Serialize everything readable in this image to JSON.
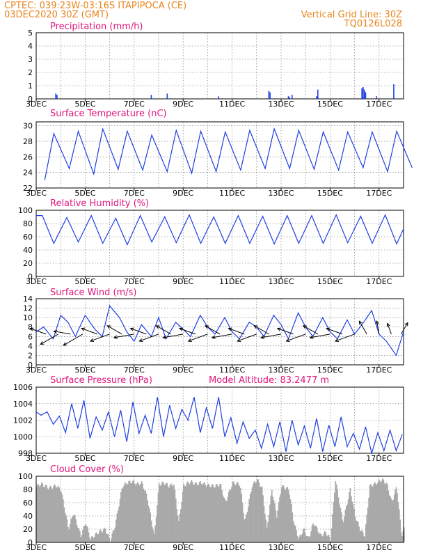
{
  "header": {
    "line1_left": "CPTEC:    039:23W-03:16S   ITAPIPOCA (CE)",
    "line2_left": "03DEC2020 30Z (GMT)",
    "line2_right": "Vertical Grid Line: 30Z",
    "line3_right": "TQ0126L028"
  },
  "colors": {
    "header": "#e8851e",
    "panel_title": "#e0177e",
    "series": "#1f3fe0",
    "cloud": "#a9a9a9",
    "wind_arrow": "#000000"
  },
  "chart_data": [
    {
      "type": "bar",
      "title": "Precipitation (mm/h)",
      "x_unit": "days since 03DEC 00Z",
      "xlim": [
        0,
        15
      ],
      "x_tick_labels": [
        "3DEC",
        "5DEC",
        "7DEC",
        "9DEC",
        "11DEC",
        "13DEC",
        "15DEC",
        "17DEC"
      ],
      "ylim": [
        0,
        5
      ],
      "y_ticks": [
        0,
        1,
        2,
        3,
        4,
        5
      ],
      "x": [
        0.8,
        0.85,
        4.7,
        5.35,
        7.45,
        9.5,
        9.55,
        10.3,
        10.35,
        10.45,
        11.45,
        11.5,
        13.3,
        13.35,
        13.4,
        13.45,
        13.9,
        14.6
      ],
      "values": [
        0.4,
        0.3,
        0.3,
        0.4,
        0.2,
        0.6,
        0.5,
        0.2,
        0.1,
        0.3,
        0.2,
        0.7,
        0.8,
        0.9,
        0.7,
        0.5,
        0.2,
        1.1
      ]
    },
    {
      "type": "line",
      "title": "Surface Temperature (nC)",
      "xlim": [
        0,
        15
      ],
      "x_tick_labels": [
        "3DEC",
        "5DEC",
        "7DEC",
        "9DEC",
        "11DEC",
        "13DEC",
        "15DEC",
        "17DEC"
      ],
      "ylim": [
        22,
        30.5
      ],
      "y_ticks": [
        22,
        24,
        26,
        28,
        30
      ],
      "min_temp": [
        23,
        24.5,
        23.8,
        24.4,
        24.3,
        24.1,
        23.9,
        24.1,
        24.3,
        24.5,
        24.5,
        24.4,
        24.3,
        24.6,
        24.1,
        24.6
      ],
      "max_temp": [
        29,
        29.3,
        29.6,
        29.3,
        28.8,
        29.4,
        29.3,
        29.2,
        29.4,
        29.6,
        29.4,
        29.2,
        29.2,
        29.2,
        29.3
      ]
    },
    {
      "type": "line",
      "title": "Relative Humidity (%)",
      "xlim": [
        0,
        15
      ],
      "x_tick_labels": [
        "3DEC",
        "5DEC",
        "7DEC",
        "9DEC",
        "11DEC",
        "13DEC",
        "15DEC",
        "17DEC"
      ],
      "ylim": [
        0,
        100
      ],
      "y_ticks": [
        0,
        20,
        40,
        60,
        80,
        100
      ],
      "max_rh": [
        92,
        89,
        92,
        88,
        92,
        90,
        93,
        90,
        92,
        91,
        92,
        92,
        93,
        91,
        93
      ],
      "min_rh": [
        50,
        52,
        50,
        48,
        52,
        51,
        50,
        50,
        50,
        49,
        50,
        50,
        51,
        50,
        49
      ]
    },
    {
      "type": "line",
      "title": "Surface Wind (m/s)",
      "xlim": [
        0,
        15
      ],
      "x_tick_labels": [
        "3DEC",
        "5DEC",
        "7DEC",
        "9DEC",
        "11DEC",
        "13DEC",
        "15DEC",
        "17DEC"
      ],
      "ylim": [
        0,
        14
      ],
      "y_ticks": [
        0,
        2,
        4,
        6,
        8,
        10,
        12,
        14
      ],
      "x": [
        0,
        0.3,
        0.7,
        1.0,
        1.3,
        1.6,
        2.0,
        2.4,
        2.7,
        3.0,
        3.4,
        3.7,
        4.0,
        4.3,
        4.7,
        5.0,
        5.3,
        5.7,
        6.0,
        6.3,
        6.7,
        7.0,
        7.3,
        7.7,
        8.0,
        8.3,
        8.7,
        9.0,
        9.3,
        9.7,
        10.0,
        10.3,
        10.7,
        11.0,
        11.3,
        11.7,
        12.0,
        12.3,
        12.7,
        13.0,
        13.3,
        13.7,
        14.0,
        14.3,
        14.7,
        15.0
      ],
      "speed": [
        7,
        8,
        5.5,
        10.5,
        9,
        6,
        10.5,
        7.5,
        6,
        12.5,
        10,
        7,
        5,
        8.5,
        6,
        10,
        5.5,
        9,
        7.5,
        6,
        10.5,
        8,
        6.5,
        10,
        7,
        5.5,
        9,
        8,
        6,
        10.5,
        8.5,
        5.5,
        11,
        8,
        6,
        10,
        7,
        5.5,
        9.5,
        6.5,
        8.5,
        11.5,
        6.5,
        5,
        2,
        7
      ],
      "arrows_x": [
        0.4,
        0.9,
        1.4,
        1.9,
        2.5,
        3.0,
        3.5,
        4.0,
        4.5,
        5.0,
        5.5,
        6.0,
        6.5,
        7.0,
        7.5,
        8.0,
        8.5,
        9.0,
        9.5,
        10.0,
        10.5,
        11.0,
        11.5,
        12.0,
        12.5,
        13.0,
        13.5,
        14.0,
        14.5,
        14.9
      ],
      "arrows_speed": [
        7,
        9,
        7,
        10,
        7,
        9,
        7,
        9,
        7,
        9,
        7,
        9,
        7,
        9,
        7,
        9,
        7,
        9,
        7,
        9,
        7,
        9,
        7,
        9,
        7,
        9,
        6,
        5,
        4,
        5
      ],
      "arrows_dir_deg": [
        200,
        150,
        190,
        150,
        200,
        160,
        210,
        170,
        200,
        160,
        210,
        170,
        200,
        160,
        210,
        170,
        200,
        160,
        210,
        170,
        200,
        160,
        210,
        170,
        200,
        160,
        240,
        260,
        250,
        300
      ]
    },
    {
      "type": "line",
      "title": "Surface Pressure (hPa)",
      "annotation": "Model Altitude: 83.2477 m",
      "xlim": [
        0,
        15
      ],
      "x_tick_labels": [
        "3DEC",
        "5DEC",
        "7DEC",
        "9DEC",
        "11DEC",
        "13DEC",
        "15DEC",
        "17DEC"
      ],
      "ylim": [
        998,
        1006
      ],
      "y_ticks": [
        998,
        1000,
        1002,
        1004,
        1006
      ],
      "x": [
        0,
        0.2,
        0.45,
        0.7,
        0.95,
        1.2,
        1.45,
        1.7,
        1.95,
        2.2,
        2.45,
        2.7,
        2.95,
        3.2,
        3.45,
        3.7,
        3.95,
        4.2,
        4.45,
        4.7,
        4.95,
        5.2,
        5.45,
        5.7,
        5.95,
        6.2,
        6.45,
        6.7,
        6.95,
        7.2,
        7.45,
        7.7,
        7.95,
        8.2,
        8.45,
        8.7,
        8.95,
        9.2,
        9.45,
        9.7,
        9.95,
        10.2,
        10.45,
        10.7,
        10.95,
        11.2,
        11.45,
        11.7,
        11.95,
        12.2,
        12.45,
        12.7,
        12.95,
        13.2,
        13.45,
        13.7,
        13.95,
        14.2,
        14.45,
        14.7,
        14.95
      ],
      "values": [
        1003,
        1002.6,
        1003,
        1001.5,
        1002.5,
        1000.5,
        1004,
        1001,
        1004.4,
        999.8,
        1002.4,
        1000.8,
        1003,
        1000,
        1003.2,
        999.4,
        1004.2,
        1000.4,
        1002.6,
        1000.4,
        1004.8,
        1000,
        1003.8,
        1001,
        1003.3,
        1002,
        1004.8,
        1000.5,
        1003.5,
        1001,
        1004.8,
        1000,
        1002.3,
        999.2,
        1001.8,
        999.8,
        1000.8,
        998.6,
        1001.5,
        998.8,
        1001.8,
        998.2,
        1002,
        999,
        1001.3,
        998.6,
        1002.2,
        998.2,
        1001.4,
        998.8,
        1002.4,
        998.8,
        1000.4,
        998.5,
        1001.2,
        998,
        1000.5,
        998.3,
        1000.8,
        998.3,
        1000.3
      ]
    },
    {
      "type": "area",
      "title": "Cloud Cover (%)",
      "xlim": [
        0,
        15
      ],
      "x_tick_labels": [
        "3DEC",
        "5DEC",
        "7DEC",
        "9DEC",
        "11DEC",
        "13DEC",
        "15DEC",
        "17DEC"
      ],
      "ylim": [
        0,
        100
      ],
      "y_ticks": [
        0,
        20,
        40,
        60,
        80,
        100
      ],
      "x": [
        0,
        0.2,
        0.5,
        0.8,
        1.0,
        1.3,
        1.5,
        1.8,
        2.0,
        2.2,
        2.5,
        2.8,
        3.0,
        3.2,
        3.5,
        3.7,
        3.9,
        4.1,
        4.3,
        4.5,
        4.8,
        5.0,
        5.2,
        5.4,
        5.6,
        5.8,
        6.0,
        6.3,
        6.5,
        6.7,
        7.0,
        7.3,
        7.5,
        7.7,
        8.0,
        8.3,
        8.5,
        8.8,
        9.0,
        9.2,
        9.4,
        9.6,
        9.8,
        10.0,
        10.3,
        10.5,
        10.7,
        10.9,
        11.1,
        11.3,
        11.6,
        11.8,
        12.0,
        12.2,
        12.5,
        12.8,
        13.0,
        13.2,
        13.4,
        13.6,
        13.9,
        14.1,
        14.3,
        14.5,
        14.7,
        14.9,
        15.0
      ],
      "values": [
        85,
        88,
        82,
        86,
        78,
        20,
        45,
        10,
        30,
        5,
        15,
        20,
        3,
        25,
        85,
        90,
        92,
        88,
        90,
        70,
        10,
        88,
        90,
        85,
        88,
        30,
        86,
        92,
        88,
        90,
        86,
        85,
        88,
        60,
        90,
        88,
        30,
        86,
        95,
        82,
        20,
        80,
        40,
        85,
        80,
        30,
        5,
        20,
        5,
        30,
        10,
        15,
        5,
        95,
        30,
        80,
        40,
        20,
        10,
        85,
        90,
        95,
        88,
        60,
        85,
        10,
        20
      ]
    }
  ]
}
